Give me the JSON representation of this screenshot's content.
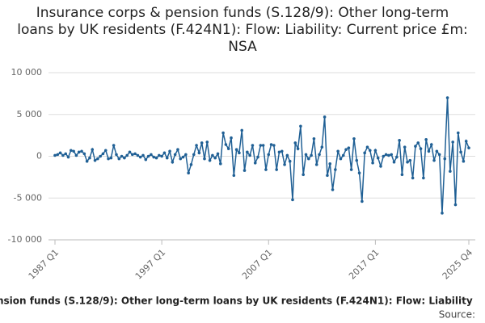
{
  "chart_data": {
    "type": "line",
    "title": "Insurance corps & pension funds (S.128/9): Other long-term loans by UK residents (F.424N1): Flow: Liability: Current price £m: NSA",
    "footer": "nsion funds (S.128/9): Other long-term loans by UK residents (F.424N1): Flow: Liability",
    "source": "Source:",
    "categories": [
      "1987 Q1",
      null,
      null,
      null,
      null,
      null,
      null,
      null,
      null,
      null,
      null,
      null,
      null,
      null,
      null,
      null,
      null,
      null,
      null,
      null,
      null,
      null,
      null,
      null,
      null,
      null,
      null,
      null,
      null,
      null,
      null,
      null,
      null,
      null,
      null,
      null,
      null,
      null,
      null,
      null,
      "1997 Q1",
      null,
      null,
      null,
      null,
      null,
      null,
      null,
      null,
      null,
      null,
      null,
      null,
      null,
      null,
      null,
      null,
      null,
      null,
      null,
      null,
      null,
      null,
      null,
      null,
      null,
      null,
      null,
      null,
      null,
      null,
      null,
      null,
      null,
      null,
      null,
      null,
      null,
      null,
      null,
      "2007 Q1",
      null,
      null,
      null,
      null,
      null,
      null,
      null,
      null,
      null,
      null,
      null,
      null,
      null,
      null,
      null,
      null,
      null,
      null,
      null,
      null,
      null,
      null,
      null,
      null,
      null,
      null,
      null,
      null,
      null,
      null,
      null,
      null,
      null,
      null,
      null,
      null,
      null,
      null,
      null,
      "2017 Q1",
      null,
      null,
      null,
      null,
      null,
      null,
      null,
      null,
      null,
      null,
      null,
      null,
      null,
      null,
      null,
      null,
      null,
      null,
      null,
      null,
      null,
      null,
      null,
      null,
      null,
      null,
      null,
      null,
      null,
      null,
      null,
      null,
      null,
      null,
      "2025 Q4"
    ],
    "values": [
      100,
      200,
      400,
      100,
      300,
      -100,
      700,
      600,
      100,
      500,
      600,
      300,
      -600,
      -200,
      800,
      -500,
      -300,
      0,
      300,
      700,
      -300,
      -200,
      1300,
      200,
      -300,
      0,
      -200,
      100,
      500,
      200,
      300,
      100,
      -100,
      100,
      -400,
      0,
      200,
      -100,
      -200,
      100,
      0,
      400,
      -200,
      600,
      -700,
      200,
      800,
      -300,
      -100,
      200,
      -2000,
      -1000,
      200,
      1300,
      400,
      1600,
      -300,
      1700,
      -500,
      100,
      -200,
      300,
      -900,
      2800,
      1400,
      900,
      2200,
      -2300,
      800,
      400,
      3100,
      -1700,
      500,
      100,
      1300,
      -800,
      -100,
      1300,
      1300,
      -1600,
      200,
      1400,
      1300,
      -1600,
      500,
      600,
      -1000,
      100,
      -600,
      -5200,
      1600,
      900,
      3600,
      -2200,
      200,
      -300,
      100,
      2100,
      -1000,
      200,
      1100,
      4700,
      -2300,
      -900,
      -4000,
      -1600,
      600,
      -300,
      100,
      800,
      1000,
      -1600,
      2100,
      -500,
      -2000,
      -5400,
      400,
      1100,
      700,
      -800,
      700,
      -200,
      -1200,
      0,
      200,
      100,
      200,
      -700,
      -100,
      1900,
      -2200,
      1100,
      -700,
      -500,
      -2600,
      1200,
      1600,
      900,
      -2600,
      2000,
      600,
      1400,
      -500,
      600,
      200,
      -6800,
      -300,
      7000,
      -1800,
      1700,
      -5800,
      2800,
      500,
      -600,
      1800,
      1000
    ],
    "color": "#206095",
    "ylim": [
      -10000,
      10000
    ],
    "yticks": [
      {
        "value": -10000,
        "label": "-10 000"
      },
      {
        "value": -5000,
        "label": "-5 000"
      },
      0,
      {
        "value": 5000,
        "label": "5 000"
      },
      {
        "value": 10000,
        "label": "10 000"
      }
    ],
    "grid": true
  }
}
